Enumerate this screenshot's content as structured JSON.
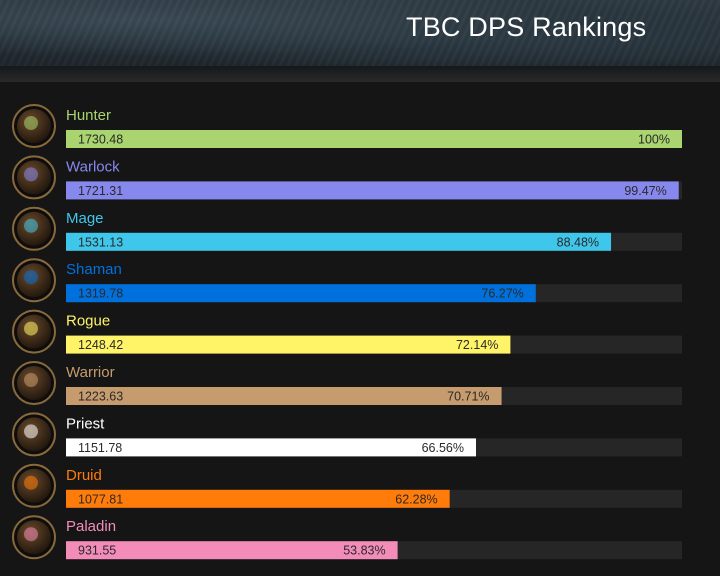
{
  "header": {
    "title": "TBC DPS Rankings"
  },
  "chart_data": {
    "type": "bar",
    "orientation": "horizontal",
    "title": "TBC DPS Rankings",
    "xlim": [
      0,
      1730.48
    ],
    "categories": [
      "Hunter",
      "Warlock",
      "Mage",
      "Shaman",
      "Rogue",
      "Warrior",
      "Priest",
      "Druid",
      "Paladin"
    ],
    "values": [
      1730.48,
      1721.31,
      1531.13,
      1319.78,
      1248.42,
      1223.63,
      1151.78,
      1077.81,
      931.55
    ],
    "value_labels": [
      "1730.48",
      "1721.31",
      "1531.13",
      "1319.78",
      "1248.42",
      "1223.63",
      "1151.78",
      "1077.81",
      "931.55"
    ],
    "percent_labels": [
      "100%",
      "99.47%",
      "88.48%",
      "76.27%",
      "72.14%",
      "70.71%",
      "66.56%",
      "62.28%",
      "53.83%"
    ],
    "colors": [
      "#a9d46f",
      "#8788ee",
      "#3fc7eb",
      "#0070dd",
      "#fff468",
      "#c69b6d",
      "#ffffff",
      "#ff7c0a",
      "#f48cba"
    ],
    "label_colors": [
      "#a9d46f",
      "#8788ee",
      "#3fc7eb",
      "#0070dd",
      "#fff468",
      "#c69b6d",
      "#ffffff",
      "#ff7c0a",
      "#f48cba"
    ],
    "icons": [
      "hunter-class-icon",
      "warlock-class-icon",
      "mage-class-icon",
      "shaman-class-icon",
      "rogue-class-icon",
      "warrior-class-icon",
      "priest-class-icon",
      "druid-class-icon",
      "paladin-class-icon"
    ],
    "track_color": "#262626",
    "grid": false,
    "legend": "none"
  }
}
